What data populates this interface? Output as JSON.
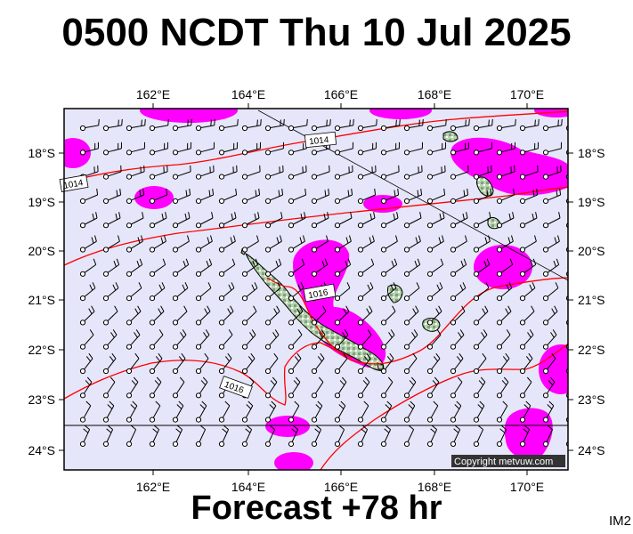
{
  "title": "0500 NCDT Thu 10 Jul 2025",
  "footer": "Forecast +78 hr",
  "tag": "IM2",
  "copyright": "Copyright metvuw.com",
  "x_ticks": [
    "162°E",
    "164°E",
    "166°E",
    "168°E",
    "170°E"
  ],
  "y_ticks": [
    "18°S",
    "19°S",
    "20°S",
    "21°S",
    "22°S",
    "23°S",
    "24°S"
  ],
  "isobars": [
    {
      "value": "1014",
      "label": "1014"
    },
    {
      "value": "1014",
      "label": "1014"
    },
    {
      "value": "1016",
      "label": "1016"
    },
    {
      "value": "1016",
      "label": "1016"
    }
  ],
  "colors": {
    "ocean": "#e6e6fa",
    "precip": "#ff00ff",
    "isobar": "#ff0000",
    "land": "#a8c8a0",
    "wind": "#000000"
  },
  "map_extent": {
    "lon_min": 160.3,
    "lon_max": 171.0,
    "lat_min": -24.3,
    "lat_max": -17.1
  }
}
